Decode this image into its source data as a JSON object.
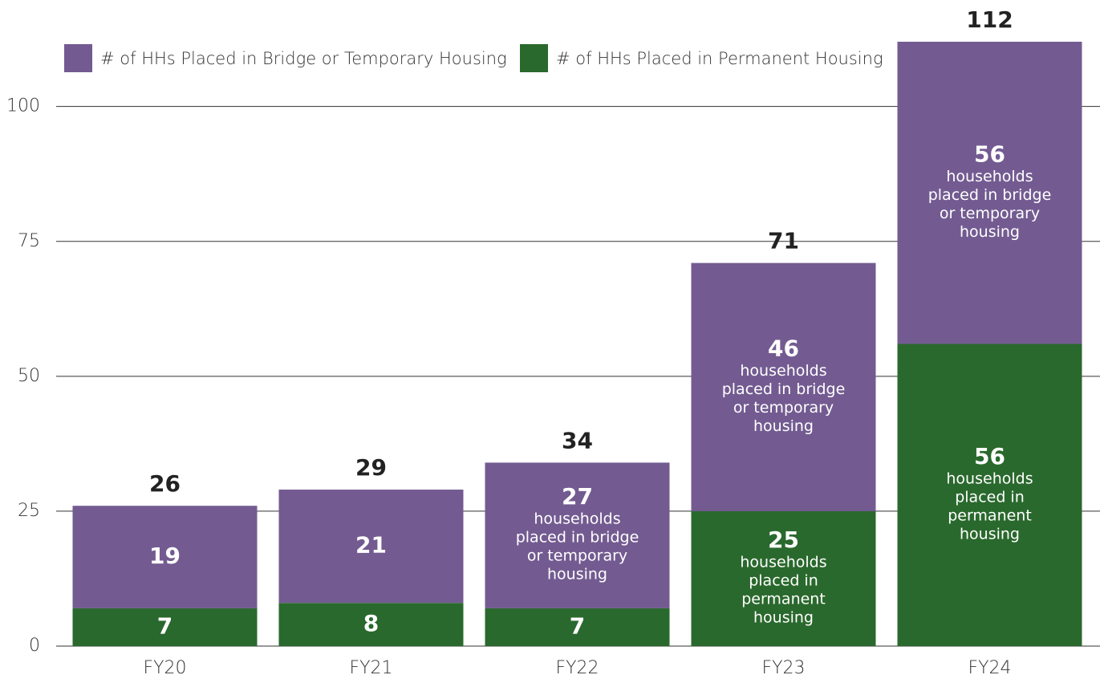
{
  "chart_data": {
    "type": "stacked_bar",
    "categories": [
      "FY20",
      "FY21",
      "FY22",
      "FY23",
      "FY24"
    ],
    "series": [
      {
        "name": "# of HHs Placed in Permanent Housing",
        "color": "#2a692d",
        "values": [
          7,
          8,
          7,
          25,
          56
        ],
        "annotations": [
          [],
          [],
          [],
          [
            "households",
            "placed in",
            "permanent",
            "housing"
          ],
          [
            "households",
            "placed in",
            "permanent",
            "housing"
          ]
        ]
      },
      {
        "name": "# of HHs Placed in Bridge or Temporary Housing",
        "color": "#735b91",
        "values": [
          19,
          21,
          27,
          46,
          56
        ],
        "annotations": [
          [],
          [],
          [
            "households",
            "placed in bridge",
            "or temporary",
            "housing"
          ],
          [
            "households",
            "placed in bridge",
            "or temporary",
            "housing"
          ],
          [
            "households",
            "placed in bridge",
            "or temporary",
            "housing"
          ]
        ]
      }
    ],
    "totals": [
      26,
      29,
      34,
      71,
      112
    ],
    "ylim": [
      0,
      112
    ],
    "yticks": [
      0,
      25,
      50,
      75,
      100
    ],
    "grid": true
  }
}
